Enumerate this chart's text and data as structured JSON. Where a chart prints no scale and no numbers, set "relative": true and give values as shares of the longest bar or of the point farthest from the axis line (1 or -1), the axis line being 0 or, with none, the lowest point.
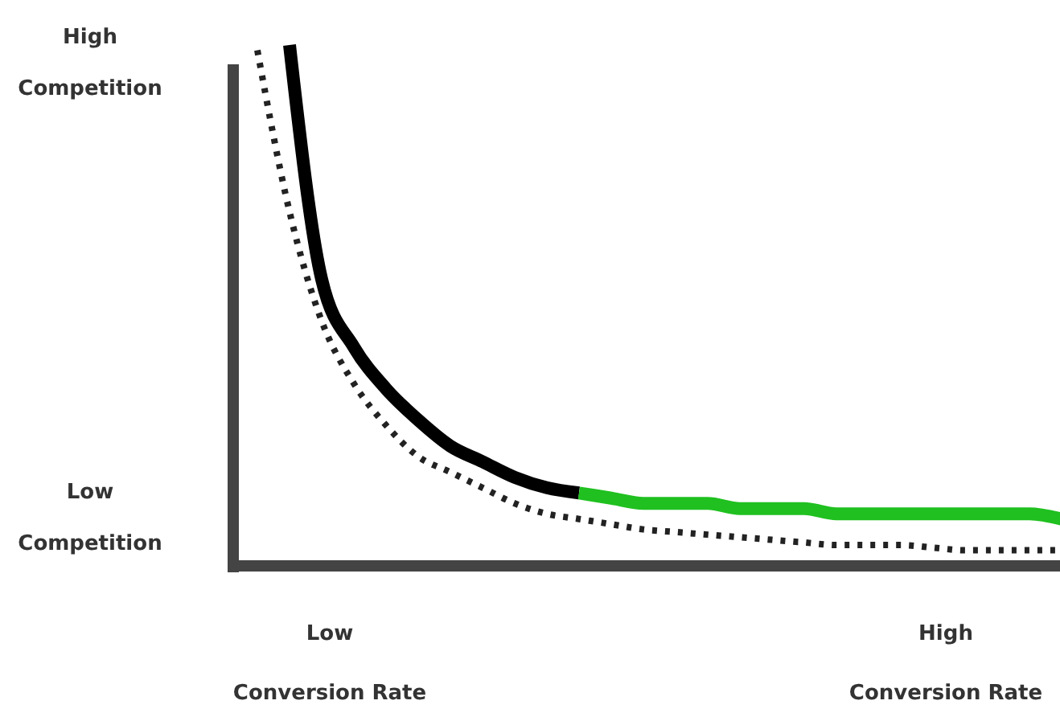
{
  "chart_data": {
    "type": "line",
    "relative": true,
    "categories": [
      null,
      null,
      null,
      null,
      null,
      null,
      null,
      null,
      null,
      null,
      null,
      null,
      null,
      null,
      null,
      null,
      null,
      null,
      null,
      null,
      null,
      null,
      null,
      null,
      null,
      null
    ],
    "series": [
      {
        "color": "#000000",
        "line_style": "solid",
        "values": [
          null,
          1.0,
          0.55,
          0.42,
          0.34,
          0.28,
          0.23,
          0.2,
          0.17,
          0.15,
          0.14,
          null,
          null,
          null,
          null,
          null,
          null,
          null,
          null,
          null,
          null,
          null,
          null,
          null,
          null,
          null
        ]
      },
      {
        "color": "#1fc01f",
        "line_style": "solid",
        "values": [
          null,
          null,
          null,
          null,
          null,
          null,
          null,
          null,
          null,
          null,
          0.14,
          0.13,
          0.12,
          0.12,
          0.12,
          0.11,
          0.11,
          0.11,
          0.1,
          0.1,
          0.1,
          0.1,
          0.1,
          0.1,
          0.1,
          0.09
        ]
      },
      {
        "color": "#222222",
        "line_style": "dotted",
        "values": [
          0.99,
          0.68,
          0.47,
          0.35,
          0.27,
          0.21,
          0.18,
          0.15,
          0.12,
          0.1,
          0.09,
          0.08,
          0.07,
          0.065,
          0.06,
          0.055,
          0.05,
          0.045,
          0.04,
          0.04,
          0.04,
          0.035,
          0.03,
          0.03,
          0.03,
          0.03
        ]
      }
    ],
    "annotations": [
      "High Competition",
      "Low Competition",
      "Low Conversion Rate",
      "High Conversion Rate"
    ]
  }
}
